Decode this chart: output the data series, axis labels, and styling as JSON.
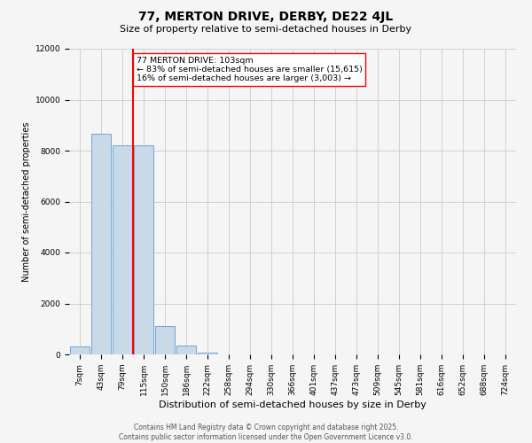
{
  "title": "77, MERTON DRIVE, DERBY, DE22 4JL",
  "subtitle": "Size of property relative to semi-detached houses in Derby",
  "xlabel": "Distribution of semi-detached houses by size in Derby",
  "ylabel": "Number of semi-detached properties",
  "bin_labels": [
    "7sqm",
    "43sqm",
    "79sqm",
    "115sqm",
    "150sqm",
    "186sqm",
    "222sqm",
    "258sqm",
    "294sqm",
    "330sqm",
    "366sqm",
    "401sqm",
    "437sqm",
    "473sqm",
    "509sqm",
    "545sqm",
    "581sqm",
    "616sqm",
    "652sqm",
    "688sqm",
    "724sqm"
  ],
  "bin_values": [
    300,
    8650,
    8200,
    8200,
    1100,
    350,
    80,
    10,
    0,
    0,
    0,
    0,
    0,
    0,
    0,
    0,
    0,
    0,
    0,
    0,
    0
  ],
  "bar_color": "#c9d9e8",
  "bar_edge_color": "#5b9bd5",
  "vline_pos": 2.5,
  "ylim": [
    0,
    12000
  ],
  "yticks": [
    0,
    2000,
    4000,
    6000,
    8000,
    10000,
    12000
  ],
  "annotation_text": "77 MERTON DRIVE: 103sqm\n← 83% of semi-detached houses are smaller (15,615)\n16% of semi-detached houses are larger (3,003) →",
  "footer_line1": "Contains HM Land Registry data © Crown copyright and database right 2025.",
  "footer_line2": "Contains public sector information licensed under the Open Government Licence v3.0.",
  "background_color": "#f5f5f5",
  "grid_color": "#cccccc",
  "title_fontsize": 10,
  "subtitle_fontsize": 8,
  "ylabel_fontsize": 7,
  "xlabel_fontsize": 8,
  "tick_fontsize": 6.5,
  "annotation_fontsize": 6.8,
  "footer_fontsize": 5.5
}
